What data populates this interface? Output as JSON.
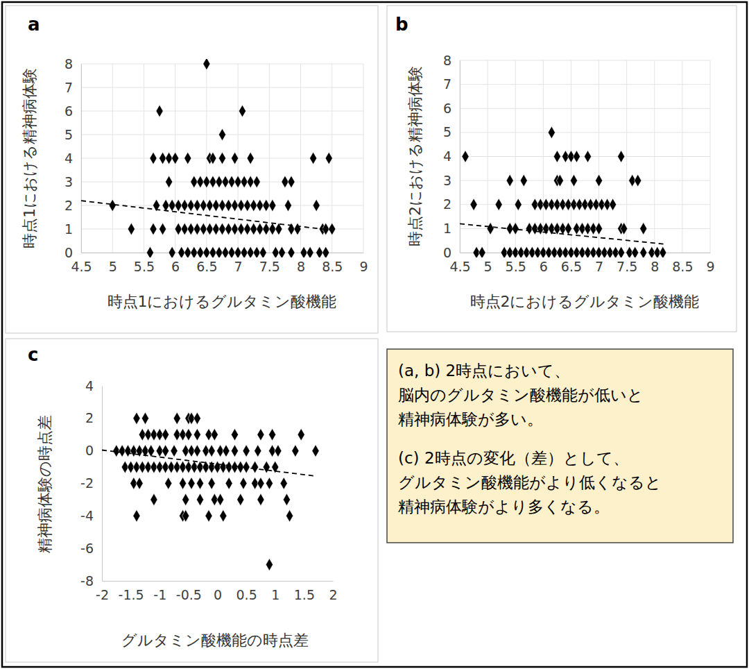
{
  "chart_data": [
    {
      "type": "scatter",
      "title": "a",
      "x_label": "時点1におけるグルタミン酸機能",
      "y_label": "時点1における精神病体験",
      "xlim": [
        4.5,
        9
      ],
      "ylim": [
        0,
        8
      ],
      "xticks": [
        4.5,
        5,
        5.5,
        6,
        6.5,
        7,
        7.5,
        8,
        8.5,
        9
      ],
      "yticks": [
        0,
        1,
        2,
        3,
        4,
        5,
        6,
        7,
        8
      ],
      "grid": true,
      "series": [
        {
          "color": "#000000",
          "marker": "diamond",
          "x": [
            6.5,
            5.75,
            7.07,
            6.75,
            5.65,
            5.8,
            5.9,
            6.0,
            6.2,
            6.55,
            6.6,
            6.75,
            6.95,
            7.2,
            8.2,
            8.45,
            5.9,
            6.3,
            6.4,
            6.5,
            6.6,
            6.7,
            6.8,
            6.9,
            7.0,
            7.1,
            7.2,
            7.3,
            7.75,
            7.85,
            5.0,
            5.7,
            5.85,
            5.95,
            6.05,
            6.15,
            6.25,
            6.35,
            6.45,
            6.55,
            6.65,
            6.75,
            6.85,
            6.95,
            7.05,
            7.15,
            7.25,
            7.35,
            7.45,
            7.55,
            7.8,
            8.25,
            5.3,
            5.65,
            5.8,
            6.05,
            6.15,
            6.25,
            6.35,
            6.45,
            6.55,
            6.65,
            6.75,
            6.85,
            6.95,
            7.05,
            7.15,
            7.25,
            7.35,
            7.45,
            7.55,
            7.65,
            7.85,
            7.95,
            8.35,
            8.4,
            8.5,
            5.6,
            5.95,
            6.1,
            6.2,
            6.3,
            6.4,
            6.5,
            6.6,
            6.7,
            6.8,
            6.9,
            7.0,
            7.1,
            7.2,
            7.3,
            7.4,
            7.6,
            7.7,
            7.85,
            8.05,
            8.15,
            8.3,
            8.4
          ],
          "values": [
            8,
            6,
            6,
            5,
            4,
            4,
            4,
            4,
            4,
            4,
            4,
            4,
            4,
            4,
            4,
            4,
            3,
            3,
            3,
            3,
            3,
            3,
            3,
            3,
            3,
            3,
            3,
            3,
            3,
            3,
            2,
            2,
            2,
            2,
            2,
            2,
            2,
            2,
            2,
            2,
            2,
            2,
            2,
            2,
            2,
            2,
            2,
            2,
            2,
            2,
            2,
            2,
            1,
            1,
            1,
            1,
            1,
            1,
            1,
            1,
            1,
            1,
            1,
            1,
            1,
            1,
            1,
            1,
            1,
            1,
            1,
            1,
            1,
            1,
            1,
            1,
            1,
            0,
            0,
            0,
            0,
            0,
            0,
            0,
            0,
            0,
            0,
            0,
            0,
            0,
            0,
            0,
            0,
            0,
            0,
            0,
            0,
            0,
            0,
            0
          ]
        },
        {
          "type": "line",
          "color": "#000000",
          "line_style": "dashed",
          "x": [
            4.5,
            8.5
          ],
          "values": [
            2.2,
            0.95
          ]
        }
      ]
    },
    {
      "type": "scatter",
      "title": "b",
      "x_label": "時点2におけるグルタミン酸機能",
      "y_label": "時点2における精神病体験",
      "xlim": [
        4.5,
        9
      ],
      "ylim": [
        0,
        8
      ],
      "xticks": [
        4.5,
        5,
        5.5,
        6,
        6.5,
        7,
        7.5,
        8,
        8.5,
        9
      ],
      "yticks": [
        0,
        1,
        2,
        3,
        4,
        5,
        6,
        7,
        8
      ],
      "grid": true,
      "series": [
        {
          "color": "#000000",
          "marker": "diamond",
          "x": [
            6.15,
            4.6,
            6.25,
            6.4,
            6.5,
            6.6,
            6.8,
            7.4,
            5.4,
            5.65,
            6.25,
            6.3,
            6.55,
            7.0,
            7.6,
            7.7,
            4.75,
            5.2,
            5.55,
            5.85,
            5.95,
            6.05,
            6.15,
            6.25,
            6.35,
            6.45,
            6.55,
            6.65,
            6.75,
            6.85,
            6.95,
            7.05,
            7.15,
            7.25,
            5.05,
            5.4,
            5.5,
            5.75,
            5.85,
            5.95,
            6.05,
            6.15,
            6.25,
            6.35,
            6.45,
            6.6,
            6.7,
            6.8,
            6.9,
            7.0,
            7.4,
            7.45,
            7.8,
            4.8,
            4.9,
            5.3,
            5.4,
            5.5,
            5.6,
            5.7,
            5.8,
            5.9,
            6.0,
            6.1,
            6.2,
            6.3,
            6.4,
            6.5,
            6.6,
            6.7,
            6.8,
            6.9,
            7.0,
            7.1,
            7.2,
            7.3,
            7.4,
            7.55,
            7.65,
            7.8,
            7.95,
            8.05,
            8.15
          ],
          "values": [
            5,
            4,
            4,
            4,
            4,
            4,
            4,
            4,
            3,
            3,
            3,
            3,
            3,
            3,
            3,
            3,
            2,
            2,
            2,
            2,
            2,
            2,
            2,
            2,
            2,
            2,
            2,
            2,
            2,
            2,
            2,
            2,
            2,
            2,
            1,
            1,
            1,
            1,
            1,
            1,
            1,
            1,
            1,
            1,
            1,
            1,
            1,
            1,
            1,
            1,
            1,
            1,
            1,
            0,
            0,
            0,
            0,
            0,
            0,
            0,
            0,
            0,
            0,
            0,
            0,
            0,
            0,
            0,
            0,
            0,
            0,
            0,
            0,
            0,
            0,
            0,
            0,
            0,
            0,
            0,
            0,
            0,
            0
          ]
        },
        {
          "type": "line",
          "color": "#000000",
          "line_style": "dashed",
          "x": [
            4.5,
            8.2
          ],
          "values": [
            1.2,
            0.35
          ]
        }
      ]
    },
    {
      "type": "scatter",
      "title": "c",
      "x_label": "グルタミン酸機能の時点差",
      "y_label": "精神病体験の時点差",
      "xlim": [
        -2,
        2
      ],
      "ylim": [
        -8,
        4
      ],
      "xticks": [
        -2,
        -1.5,
        -1,
        -0.5,
        0,
        0.5,
        1,
        1.5,
        2
      ],
      "yticks": [
        -8,
        -6,
        -4,
        -2,
        0,
        2,
        4
      ],
      "grid": false,
      "series": [
        {
          "color": "#000000",
          "marker": "diamond",
          "x": [
            -1.4,
            -1.25,
            -0.7,
            -0.5,
            -0.45,
            -0.35,
            -1.3,
            -1.2,
            -1.1,
            -1.0,
            -0.9,
            -0.7,
            -0.6,
            -0.5,
            -0.35,
            -0.15,
            -0.05,
            0.3,
            0.75,
            0.95,
            1.45,
            -1.75,
            -1.65,
            -1.55,
            -1.45,
            -1.35,
            -1.25,
            -1.15,
            -1.0,
            -0.9,
            -0.75,
            -0.55,
            -0.45,
            -0.35,
            -0.2,
            -0.1,
            0.05,
            0.15,
            0.3,
            0.5,
            0.7,
            0.95,
            1.05,
            1.35,
            1.7,
            -1.6,
            -1.5,
            -1.4,
            -1.3,
            -1.2,
            -1.1,
            -1.0,
            -0.9,
            -0.8,
            -0.7,
            -0.6,
            -0.5,
            -0.4,
            -0.3,
            -0.2,
            -0.1,
            0.0,
            0.1,
            0.2,
            0.3,
            0.4,
            0.5,
            0.65,
            0.85,
            1.0,
            -1.45,
            -1.35,
            -0.85,
            -0.6,
            -0.45,
            -0.3,
            -0.1,
            0.2,
            0.45,
            0.65,
            0.75,
            0.9,
            1.15,
            -1.1,
            -0.55,
            -0.3,
            -0.05,
            0.05,
            0.4,
            0.75,
            1.2,
            -1.4,
            -0.6,
            -0.55,
            -0.15,
            0.1,
            1.25,
            0.9
          ],
          "values": [
            2,
            2,
            2,
            2,
            2,
            2,
            1,
            1,
            1,
            1,
            1,
            1,
            1,
            1,
            1,
            1,
            1,
            1,
            1,
            1,
            1,
            0,
            0,
            0,
            0,
            0,
            0,
            0,
            0,
            0,
            0,
            0,
            0,
            0,
            0,
            0,
            0,
            0,
            0,
            0,
            0,
            0,
            0,
            0,
            0,
            -1,
            -1,
            -1,
            -1,
            -1,
            -1,
            -1,
            -1,
            -1,
            -1,
            -1,
            -1,
            -1,
            -1,
            -1,
            -1,
            -1,
            -1,
            -1,
            -1,
            -1,
            -1,
            -1,
            -1,
            -1,
            -2,
            -2,
            -2,
            -2,
            -2,
            -2,
            -2,
            -2,
            -2,
            -2,
            -2,
            -2,
            -2,
            -3,
            -3,
            -3,
            -3,
            -3,
            -3,
            -3,
            -3,
            -4,
            -4,
            -4,
            -4,
            -4,
            -4,
            -7
          ]
        },
        {
          "type": "line",
          "color": "#000000",
          "line_style": "dashed",
          "x": [
            -2,
            1.7
          ],
          "values": [
            0.05,
            -1.55
          ]
        }
      ]
    }
  ],
  "note": [
    "(a, b) 2時点において、",
    "脳内のグルタミン酸機能が低いと",
    "精神病体験が多い。",
    "(c) 2時点の変化（差）として、",
    "グルタミン酸機能がより低くなると",
    "精神病体験がより多くなる。"
  ]
}
